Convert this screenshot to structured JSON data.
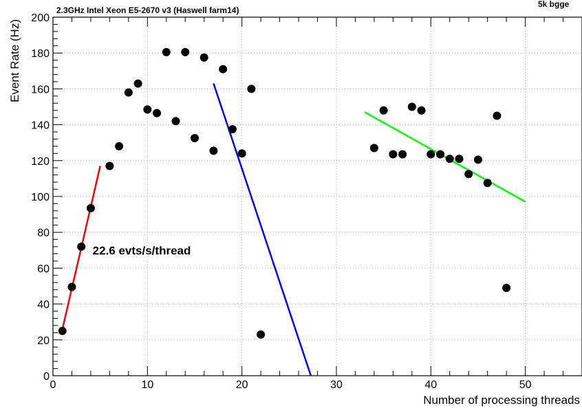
{
  "chart_data": {
    "type": "scatter",
    "title": "2.3GHz Intel Xeon E5-2670 v3 (Haswell farm14)",
    "corner_text": "5k bgge",
    "xlabel": "Number of processing threads",
    "ylabel": "Event Rate (Hz)",
    "xlim": [
      0,
      56
    ],
    "ylim": [
      0,
      200
    ],
    "x_ticks": [
      0,
      10,
      20,
      30,
      40,
      50
    ],
    "y_ticks": [
      0,
      20,
      40,
      60,
      80,
      100,
      120,
      140,
      160,
      180,
      200
    ],
    "grid": true,
    "points": [
      {
        "x": 1,
        "y": 25
      },
      {
        "x": 2,
        "y": 49.5
      },
      {
        "x": 3,
        "y": 72
      },
      {
        "x": 4,
        "y": 93.5
      },
      {
        "x": 6,
        "y": 117
      },
      {
        "x": 7,
        "y": 128
      },
      {
        "x": 8,
        "y": 158
      },
      {
        "x": 9,
        "y": 163
      },
      {
        "x": 10,
        "y": 148.5
      },
      {
        "x": 11,
        "y": 146.5
      },
      {
        "x": 12,
        "y": 180.5
      },
      {
        "x": 13,
        "y": 142
      },
      {
        "x": 14,
        "y": 180.5
      },
      {
        "x": 15,
        "y": 132.5
      },
      {
        "x": 16,
        "y": 177.5
      },
      {
        "x": 17,
        "y": 125.5
      },
      {
        "x": 18,
        "y": 171
      },
      {
        "x": 19,
        "y": 137.5
      },
      {
        "x": 20,
        "y": 124
      },
      {
        "x": 21,
        "y": 160
      },
      {
        "x": 22,
        "y": 23
      },
      {
        "x": 34,
        "y": 127
      },
      {
        "x": 35,
        "y": 148
      },
      {
        "x": 36,
        "y": 123.5
      },
      {
        "x": 37,
        "y": 123.5
      },
      {
        "x": 38,
        "y": 150
      },
      {
        "x": 39,
        "y": 148
      },
      {
        "x": 40,
        "y": 123.5
      },
      {
        "x": 41,
        "y": 123.5
      },
      {
        "x": 42,
        "y": 121
      },
      {
        "x": 43,
        "y": 121
      },
      {
        "x": 44,
        "y": 112.5
      },
      {
        "x": 45,
        "y": 120.5
      },
      {
        "x": 46,
        "y": 107.5
      },
      {
        "x": 47,
        "y": 145
      },
      {
        "x": 48,
        "y": 49
      }
    ],
    "fit_lines": [
      {
        "color": "#ff0000",
        "x": [
          1,
          5
        ],
        "y": [
          26,
          117
        ]
      },
      {
        "color": "#0000ff",
        "x": [
          17,
          27.3
        ],
        "y": [
          163,
          0
        ]
      },
      {
        "color": "#00ff00",
        "x": [
          33,
          50
        ],
        "y": [
          147,
          97
        ]
      }
    ],
    "annotations": [
      {
        "text": "22.6 evts/s/thread",
        "x": 4.2,
        "y": 70
      }
    ]
  }
}
